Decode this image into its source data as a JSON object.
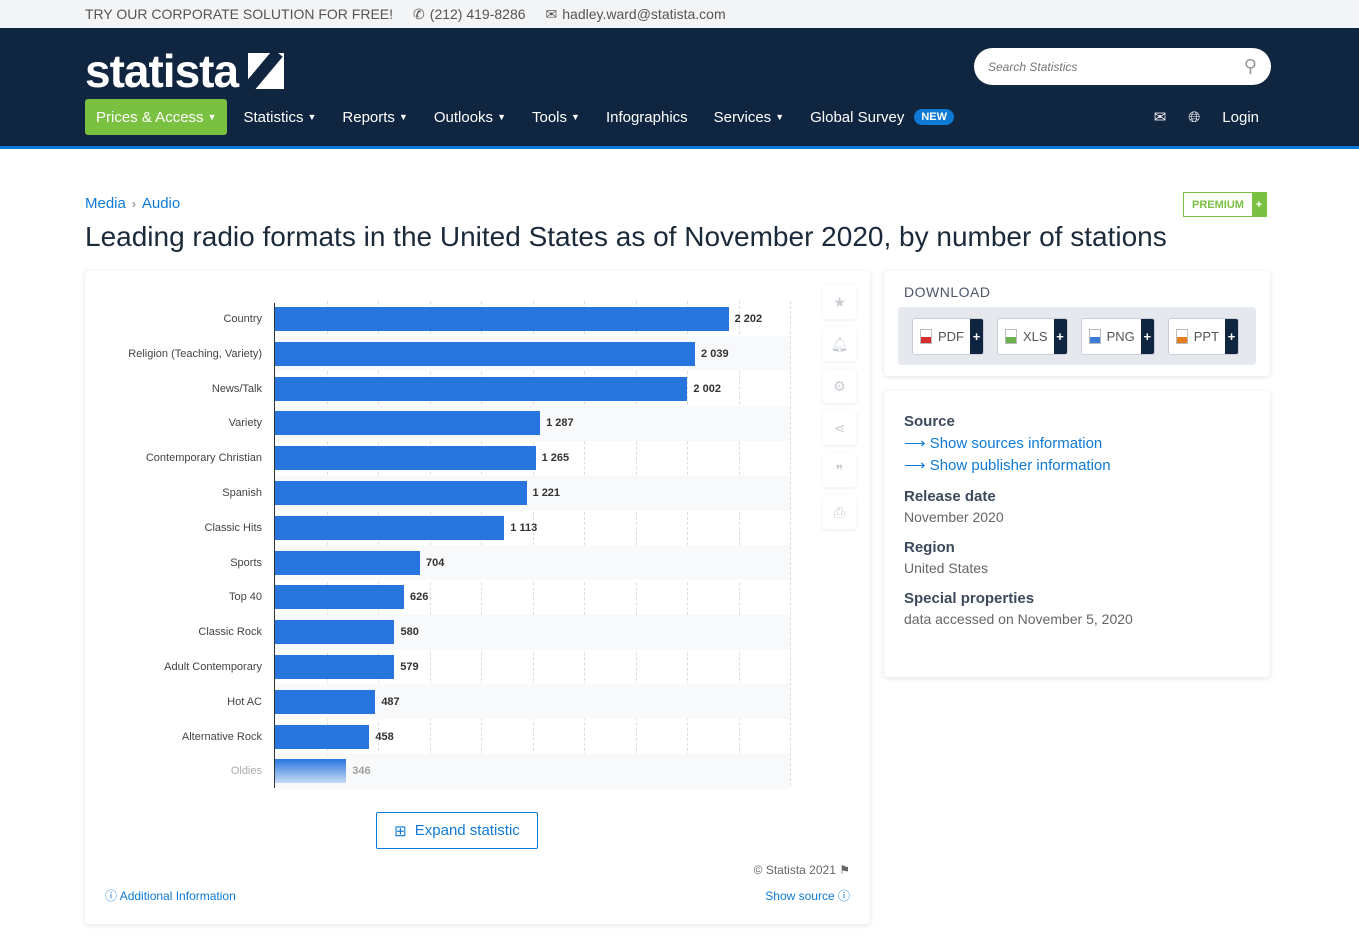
{
  "topbar": {
    "promo": "TRY OUR CORPORATE SOLUTION FOR FREE!",
    "phone": "(212) 419-8286",
    "email": "hadley.ward@statista.com"
  },
  "header": {
    "logo": "statista",
    "search_placeholder": "Search Statistics",
    "nav": [
      {
        "label": "Prices & Access",
        "caret": true
      },
      {
        "label": "Statistics",
        "caret": true
      },
      {
        "label": "Reports",
        "caret": true
      },
      {
        "label": "Outlooks",
        "caret": true
      },
      {
        "label": "Tools",
        "caret": true
      },
      {
        "label": "Infographics",
        "caret": false
      },
      {
        "label": "Services",
        "caret": true
      },
      {
        "label": "Global Survey",
        "caret": false
      }
    ],
    "new_badge": "NEW",
    "login": "Login"
  },
  "breadcrumb": [
    "Media",
    "Audio"
  ],
  "premium": "PREMIUM",
  "title": "Leading radio formats in the United States as of November 2020, by number of stations",
  "chart_data": {
    "type": "bar",
    "orientation": "horizontal",
    "categories": [
      "Country",
      "Religion (Teaching, Variety)",
      "News/Talk",
      "Variety",
      "Contemporary Christian",
      "Spanish",
      "Classic Hits",
      "Sports",
      "Top 40",
      "Classic Rock",
      "Adult Contemporary",
      "Hot AC",
      "Alternative Rock",
      "Oldies"
    ],
    "values": [
      2202,
      2039,
      2002,
      1287,
      1265,
      1221,
      1113,
      704,
      626,
      580,
      579,
      487,
      458,
      346
    ],
    "value_labels": [
      "2 202",
      "2 039",
      "2 002",
      "1 287",
      "1 265",
      "1 221",
      "1 113",
      "704",
      "626",
      "580",
      "579",
      "487",
      "458",
      "346"
    ],
    "xlim": [
      0,
      2500
    ],
    "grid": true,
    "color": "#2876dd"
  },
  "chart_footer": {
    "expand": "Expand statistic",
    "copyright": "© Statista 2021",
    "additional": "Additional Information",
    "show_source": "Show source"
  },
  "download": {
    "title": "DOWNLOAD",
    "buttons": [
      {
        "label": "PDF",
        "color": "#d32f2f"
      },
      {
        "label": "XLS",
        "color": "#6ab04c"
      },
      {
        "label": "PNG",
        "color": "#3a7bd5"
      },
      {
        "label": "PPT",
        "color": "#e67e22"
      }
    ]
  },
  "info": {
    "source_label": "Source",
    "source_link": "Show sources information",
    "publisher_link": "Show publisher information",
    "release_label": "Release date",
    "release": "November 2020",
    "region_label": "Region",
    "region": "United States",
    "special_label": "Special properties",
    "special": "data accessed on November 5, 2020"
  }
}
